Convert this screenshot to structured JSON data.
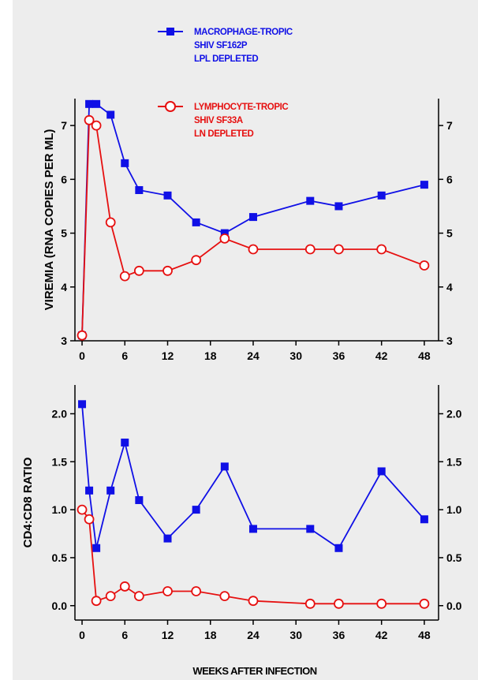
{
  "colors": {
    "background": "#ededed",
    "macrophage": "#1010e6",
    "lymphocyte": "#e61010",
    "axis": "#000000"
  },
  "legend": {
    "macrophage_lines": [
      "MACROPHAGE-TROPIC",
      "SHIV SF162P",
      "LPL DEPLETED"
    ],
    "lymphocyte_lines": [
      "LYMPHOCYTE-TROPIC",
      "SHIV SF33A",
      "LN DEPLETED"
    ]
  },
  "xlabel": "WEEKS AFTER INFECTION",
  "chart_data": [
    {
      "type": "line",
      "ylabel": "VIREMIA (RNA COPIES PER ML)",
      "xlim": [
        -1,
        50
      ],
      "ylim": [
        3,
        7.5
      ],
      "xticks": [
        0,
        6,
        12,
        18,
        24,
        30,
        36,
        42,
        48
      ],
      "yticks": [
        3,
        4,
        5,
        6,
        7
      ],
      "ytick_labels": [
        "3",
        "4",
        "5",
        "6",
        "7"
      ],
      "series": [
        {
          "name": "MACROPHAGE-TROPIC SHIV SF162P LPL DEPLETED",
          "color": "#1010e6",
          "marker": "square",
          "x": [
            0,
            1,
            2,
            4,
            6,
            8,
            12,
            16,
            20,
            24,
            32,
            36,
            42,
            48
          ],
          "y": [
            3.1,
            7.4,
            7.4,
            7.2,
            6.3,
            5.8,
            5.7,
            5.2,
            5.0,
            5.3,
            5.6,
            5.5,
            5.7,
            5.9
          ]
        },
        {
          "name": "LYMPHOCYTE-TROPIC SHIV SF33A LN DEPLETED",
          "color": "#e61010",
          "marker": "circle",
          "x": [
            0,
            1,
            2,
            4,
            6,
            8,
            12,
            16,
            20,
            24,
            32,
            36,
            42,
            48
          ],
          "y": [
            3.1,
            7.1,
            7.0,
            5.2,
            4.2,
            4.3,
            4.3,
            4.5,
            4.9,
            4.7,
            4.7,
            4.7,
            4.7,
            4.4
          ]
        }
      ]
    },
    {
      "type": "line",
      "ylabel": "CD4:CD8 RATIO",
      "xlim": [
        -1,
        50
      ],
      "ylim": [
        -0.15,
        2.3
      ],
      "xticks": [
        0,
        6,
        12,
        18,
        24,
        30,
        36,
        42,
        48
      ],
      "xtick_labels": [
        "0",
        "6",
        "12",
        "18",
        "24",
        "30",
        "36",
        "42",
        "48"
      ],
      "yticks": [
        0,
        0.5,
        1.0,
        1.5,
        2.0
      ],
      "ytick_labels": [
        "0.0",
        "0.5",
        "1.0",
        "1.5",
        "2.0"
      ],
      "series": [
        {
          "name": "MACROPHAGE-TROPIC SHIV SF162P LPL DEPLETED",
          "color": "#1010e6",
          "marker": "square",
          "x": [
            0,
            1,
            2,
            4,
            6,
            8,
            12,
            16,
            20,
            24,
            32,
            36,
            42,
            48
          ],
          "y": [
            2.1,
            1.2,
            0.6,
            1.2,
            1.7,
            1.1,
            0.7,
            1.0,
            1.45,
            0.8,
            0.8,
            0.6,
            1.4,
            0.9
          ]
        },
        {
          "name": "LYMPHOCYTE-TROPIC SHIV SF33A LN DEPLETED",
          "color": "#e61010",
          "marker": "circle",
          "x": [
            0,
            1,
            2,
            4,
            6,
            8,
            12,
            16,
            20,
            24,
            32,
            36,
            42,
            48
          ],
          "y": [
            1.0,
            0.9,
            0.05,
            0.1,
            0.2,
            0.1,
            0.15,
            0.15,
            0.1,
            0.05,
            0.02,
            0.02,
            0.02,
            0.02
          ]
        }
      ]
    }
  ]
}
